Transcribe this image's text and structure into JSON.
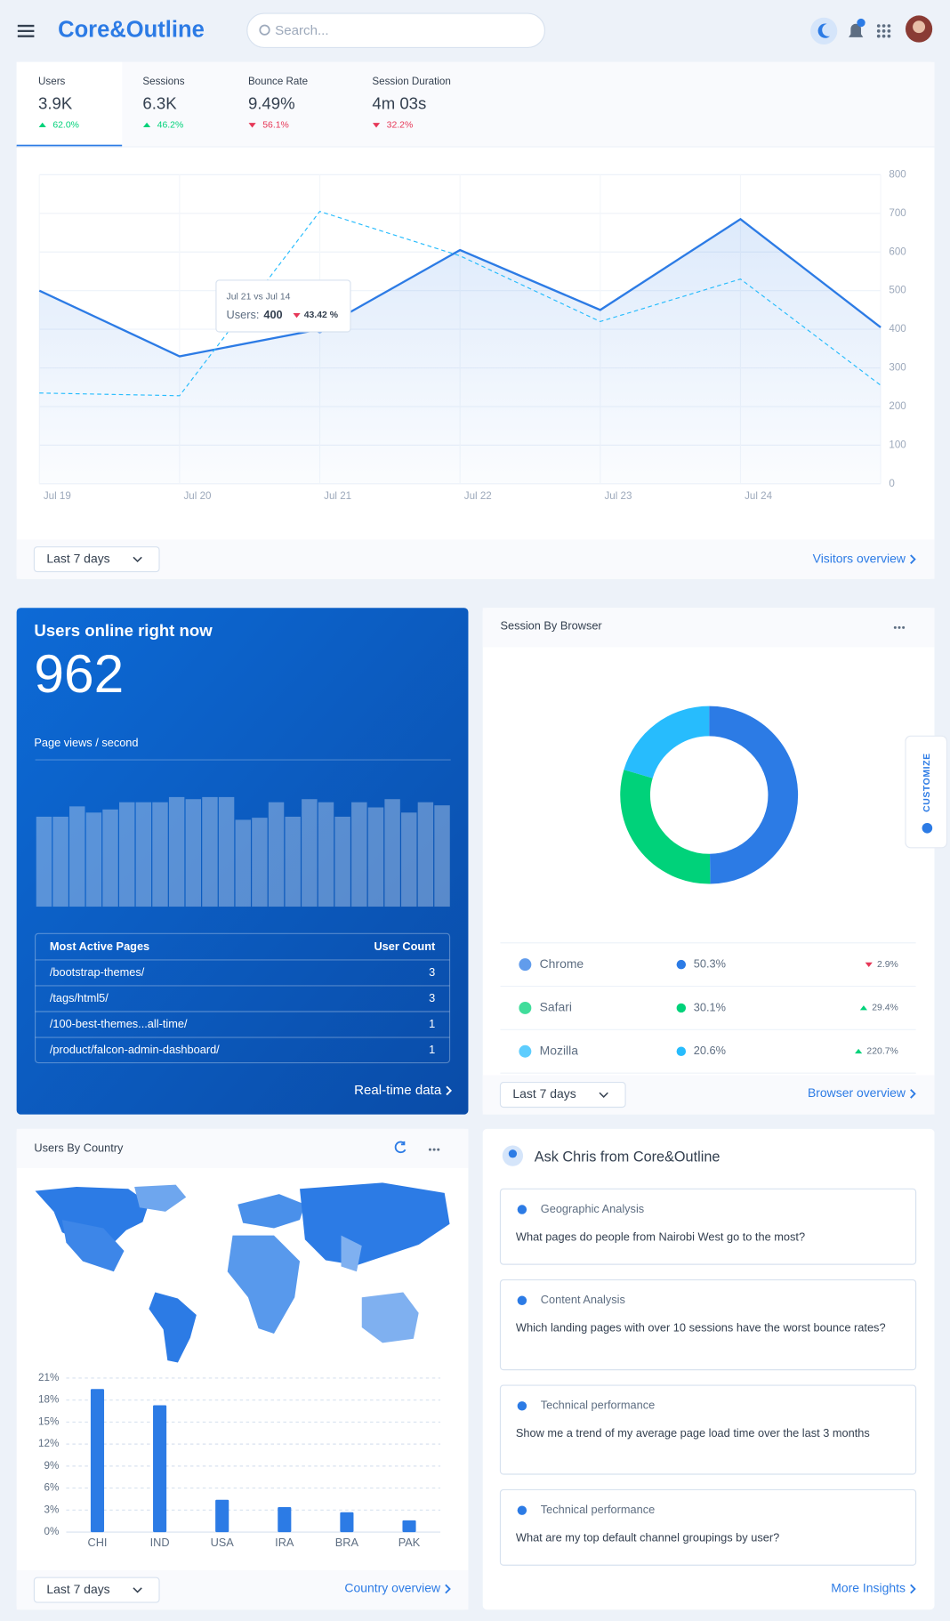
{
  "header": {
    "brand": "Core&Outline",
    "search_placeholder": "Search..."
  },
  "metrics": [
    {
      "label": "Users",
      "value": "3.9K",
      "change": "62.0%",
      "direction": "up"
    },
    {
      "label": "Sessions",
      "value": "6.3K",
      "change": "46.2%",
      "direction": "up"
    },
    {
      "label": "Bounce Rate",
      "value": "9.49%",
      "change": "56.1%",
      "direction": "down"
    },
    {
      "label": "Session Duration",
      "value": "4m 03s",
      "change": "32.2%",
      "direction": "down"
    }
  ],
  "chart_data": [
    {
      "type": "line",
      "categories": [
        "Jul 19",
        "Jul 20",
        "Jul 21",
        "Jul 22",
        "Jul 23",
        "Jul 24",
        null
      ],
      "series": [
        {
          "color": "#2c7be5",
          "values": [
            500,
            330,
            400,
            605,
            450,
            685,
            405
          ]
        },
        {
          "color": "#27bcfd",
          "dashed": true,
          "values": [
            235,
            228,
            705,
            590,
            420,
            530,
            255
          ]
        }
      ],
      "ylim": [
        0,
        800
      ],
      "yticks": [
        0,
        100,
        200,
        300,
        400,
        500,
        600,
        700,
        800
      ],
      "grid": true
    },
    {
      "type": "bar",
      "color": "rgba(255,255,255,0.32)",
      "values": [
        87,
        87,
        97,
        91,
        94,
        101,
        101,
        101,
        106,
        104,
        106,
        106,
        84,
        86,
        101,
        87,
        104,
        101,
        87,
        101,
        96,
        104,
        91,
        101,
        98
      ]
    },
    {
      "type": "pie",
      "categories": [
        "Chrome",
        "Safari",
        "Mozilla"
      ],
      "values": [
        50.3,
        30.1,
        20.6
      ],
      "value_labels": [
        "50.3%",
        "30.1%",
        "20.6%"
      ],
      "colors": [
        "#2c7be5",
        "#00d27a",
        "#27bcfd"
      ],
      "changes": [
        {
          "text": "2.9%",
          "direction": "down"
        },
        {
          "text": "29.4%",
          "direction": "up"
        },
        {
          "text": "220.7%",
          "direction": "up"
        }
      ]
    },
    {
      "type": "bar",
      "categories": [
        "CHI",
        "IND",
        "USA",
        "IRA",
        "BRA",
        "PAK"
      ],
      "values": [
        19.5,
        17.3,
        4.4,
        3.4,
        2.7,
        1.6
      ],
      "color": "#2c7be5",
      "ylim": [
        0,
        21
      ],
      "yticks": [
        {
          "value": 0,
          "label": "0%"
        },
        {
          "value": 3,
          "label": "3%"
        },
        {
          "value": 6,
          "label": "6%"
        },
        {
          "value": 9,
          "label": "9%"
        },
        {
          "value": 12,
          "label": "12%"
        },
        {
          "value": 15,
          "label": "15%"
        },
        {
          "value": 18,
          "label": "18%"
        },
        {
          "value": 21,
          "label": "21%"
        }
      ],
      "grid": true
    }
  ],
  "tooltip": {
    "title": "Jul 21 vs Jul 14",
    "label": "Users:",
    "value": 400,
    "change": "43.42 %"
  },
  "visitors": {
    "filter": "Last 7 days",
    "link": "Visitors overview"
  },
  "realtime": {
    "title": "Users online right now",
    "count": "962",
    "subtitle": "Page views / second",
    "table": {
      "headers": [
        "Most Active Pages",
        "User Count"
      ],
      "rows": [
        [
          "/bootstrap-themes/",
          "3"
        ],
        [
          "/tags/html5/",
          "3"
        ],
        [
          "/100-best-themes...all-time/",
          "1"
        ],
        [
          "/product/falcon-admin-dashboard/",
          "1"
        ]
      ]
    },
    "link": "Real-time data"
  },
  "browser": {
    "title": "Session By Browser",
    "filter": "Last 7 days",
    "link": "Browser overview"
  },
  "country": {
    "title": "Users By Country",
    "filter": "Last 7 days",
    "link": "Country overview"
  },
  "ask": {
    "title": "Ask Chris from Core&Outline",
    "items": [
      {
        "heading": "Geographic Analysis",
        "question": "What pages do people from Nairobi West go to the most?"
      },
      {
        "heading": "Content Analysis",
        "question": "Which landing pages with over 10 sessions have the worst bounce rates?"
      },
      {
        "heading": "Technical performance",
        "question": "Show me a trend of my average page load time over the last 3 months"
      },
      {
        "heading": "Technical performance",
        "question": "What are my top default channel groupings by user?"
      }
    ],
    "link": "More Insights"
  },
  "customize": "CUSTOMIZE"
}
